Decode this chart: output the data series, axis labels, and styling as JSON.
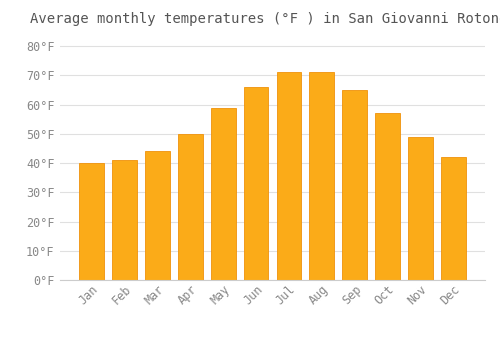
{
  "months": [
    "Jan",
    "Feb",
    "Mar",
    "Apr",
    "May",
    "Jun",
    "Jul",
    "Aug",
    "Sep",
    "Oct",
    "Nov",
    "Dec"
  ],
  "values": [
    40,
    41,
    44,
    50,
    59,
    66,
    71,
    71,
    65,
    57,
    49,
    42
  ],
  "bar_color": "#FBAB18",
  "bar_edge_color": "#F0920A",
  "title": "Average monthly temperatures (°F ) in San Giovanni Rotondo",
  "ylim": [
    0,
    85
  ],
  "yticks": [
    0,
    10,
    20,
    30,
    40,
    50,
    60,
    70,
    80
  ],
  "ytick_labels": [
    "0°F",
    "10°F",
    "20°F",
    "30°F",
    "40°F",
    "50°F",
    "60°F",
    "70°F",
    "80°F"
  ],
  "background_color": "#FFFFFF",
  "grid_color": "#E0E0E0",
  "title_fontsize": 10,
  "tick_fontsize": 8.5,
  "font_family": "monospace"
}
